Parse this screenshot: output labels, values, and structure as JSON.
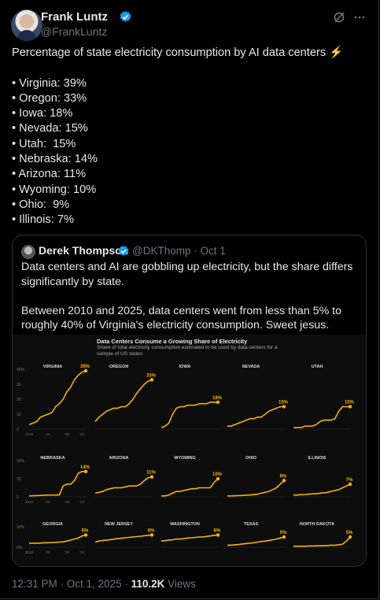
{
  "author": {
    "name": "Frank Luntz",
    "handle": "@FrankLuntz"
  },
  "tweet": {
    "text": "Percentage of state electricity consumption by AI data centers ⚡\n\n• Virginia: 39%\n• Oregon: 33%\n• Iowa: 18%\n• Nevada: 15%\n• Utah:  15%\n• Nebraska: 14%\n• Arizona: 11%\n• Wyoming: 10%\n• Ohio:  9%\n• Illinois: 7%"
  },
  "quoted": {
    "name": "Derek Thompson",
    "meta": "@DKThomp · Oct 1",
    "text": "Data centers and AI are gobbling up electricity, but the share differs significantly by state.\n\nBetween 2010 and 2025, data centers went from less than 5% to roughly 40% of Virginia's electricity consumption. Sweet jesus."
  },
  "figure": {
    "title": "Data Centers Consume a Growing Share of Electricity",
    "subtitle": "Share of total electricity consumption estimated to be used by data centers for a sample of US states"
  },
  "footer": {
    "time": "12:31 PM · Oct 1, 2025 · ",
    "views": "110.2K",
    "views_label": " Views"
  },
  "chart_data": {
    "type": "line",
    "title": "Data Centers Consume a Growing Share of Electricity",
    "subtitle": "Share of total electricity consumption estimated to be used by data centers for a sample of US states",
    "x_ticks": [
      "2010",
      "'15",
      "'20",
      "'24"
    ],
    "rows": [
      {
        "yticks": [
          "40%",
          "30",
          "20",
          "10",
          "0"
        ],
        "ylim": [
          0,
          40
        ],
        "panels": [
          {
            "name": "VIRGINIA",
            "label": "39%",
            "values": [
              3,
              4,
              5,
              8,
              9,
              10,
              11,
              15,
              17,
              20,
              25,
              28,
              33,
              36,
              38,
              39
            ]
          },
          {
            "name": "OREGON",
            "label": "33%",
            "values": [
              5,
              8,
              10,
              12,
              13,
              14,
              14,
              15,
              15,
              17,
              20,
              24,
              27,
              30,
              32,
              33
            ]
          },
          {
            "name": "IOWA",
            "label": "18%",
            "values": [
              1,
              2,
              4,
              10,
              14,
              15,
              15,
              16,
              16,
              16,
              17,
              17,
              17,
              18,
              18,
              18
            ]
          },
          {
            "name": "NEVADA",
            "label": "15%",
            "values": [
              2,
              2,
              3,
              4,
              5,
              6,
              7,
              7,
              8,
              8,
              10,
              12,
              13,
              14,
              15,
              15
            ]
          },
          {
            "name": "UTAH",
            "label": "15%",
            "values": [
              1,
              1,
              1,
              2,
              2,
              2,
              3,
              5,
              6,
              6,
              6,
              7,
              12,
              15,
              15,
              15
            ]
          }
        ]
      },
      {
        "yticks": [
          "20%",
          "10",
          "0"
        ],
        "ylim": [
          0,
          20
        ],
        "panels": [
          {
            "name": "NEBRASKA",
            "label": "14%",
            "values": [
              0.5,
              0.6,
              0.7,
              0.8,
              0.9,
              1,
              1,
              1,
              1,
              6,
              7,
              7,
              9,
              13,
              14,
              14
            ]
          },
          {
            "name": "ARIZONA",
            "label": "11%",
            "values": [
              2,
              2.5,
              3,
              4,
              4.5,
              5,
              5,
              5,
              5.5,
              6,
              6,
              6,
              7,
              9,
              10.5,
              11
            ]
          },
          {
            "name": "WYOMING",
            "label": "10%",
            "values": [
              0.5,
              0.5,
              1,
              2,
              3,
              3,
              3.5,
              4,
              4.5,
              4.5,
              5,
              5,
              5,
              5,
              8,
              10
            ]
          },
          {
            "name": "OHIO",
            "label": "9%",
            "values": [
              0.5,
              0.5,
              0.6,
              0.7,
              0.8,
              1,
              1,
              1.2,
              1.5,
              2,
              2.5,
              3,
              4,
              5,
              7,
              9
            ]
          },
          {
            "name": "ILLINOIS",
            "label": "7%",
            "values": [
              1,
              1,
              1.2,
              1.3,
              1.5,
              1.6,
              1.8,
              2,
              2.2,
              2.5,
              3,
              3.5,
              4,
              5,
              6,
              7
            ]
          }
        ]
      },
      {
        "yticks": [
          "10%",
          "0%"
        ],
        "ylim": [
          0,
          10
        ],
        "panels": [
          {
            "name": "GEORGIA",
            "label": "6%",
            "values": [
              2,
              2,
              2,
              2,
              2.2,
              2.2,
              2.3,
              2.4,
              2.5,
              2.6,
              3,
              3.5,
              4,
              4.5,
              5.5,
              6
            ]
          },
          {
            "name": "NEW JERSEY",
            "label": "6%",
            "values": [
              2.5,
              3,
              3.3,
              3.5,
              3.7,
              4,
              4.2,
              4.4,
              4.6,
              4.8,
              5,
              5.2,
              5.4,
              5.6,
              5.8,
              6
            ]
          },
          {
            "name": "WASHINGTON",
            "label": "6%",
            "values": [
              3,
              3.2,
              3.5,
              3.7,
              4,
              4,
              4.2,
              4.5,
              4.6,
              4.8,
              5,
              5,
              5.3,
              5.5,
              5.8,
              6
            ]
          },
          {
            "name": "TEXAS",
            "label": "5%",
            "values": [
              1,
              1,
              1.2,
              1.4,
              1.6,
              1.8,
              2,
              2.2,
              2.5,
              2.8,
              3,
              3.3,
              3.6,
              4,
              4.5,
              5
            ]
          },
          {
            "name": "NORTH DAKOTA",
            "label": "5%",
            "values": [
              0.5,
              0.5,
              0.5,
              0.5,
              0.6,
              0.6,
              0.7,
              0.7,
              0.8,
              0.8,
              1,
              1,
              1.2,
              1.5,
              3,
              5
            ]
          }
        ]
      }
    ]
  },
  "colors": {
    "line": "#f5b400",
    "background": "#000000",
    "muted": "#71767b",
    "verified": "#1d9bf0"
  }
}
